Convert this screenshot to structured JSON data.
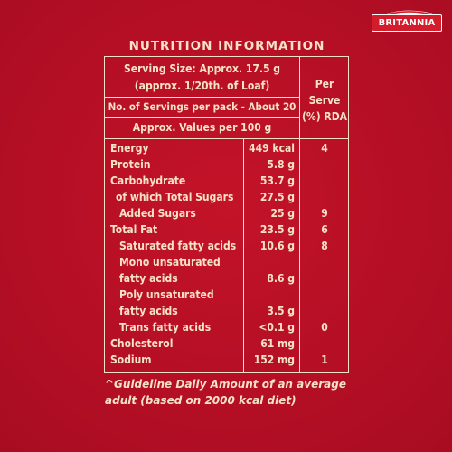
{
  "brand": {
    "name": "BRITANNIA"
  },
  "title": "NUTRITION INFORMATION",
  "serving": {
    "line1": "Serving Size: Approx. 17.5 g",
    "line2": "(approx. 1/20th. of Loaf)",
    "servings_per_pack": "No. of Servings per pack - About 20",
    "approx_values": "Approx. Values per 100 g",
    "rda_header_1": "Per",
    "rda_header_2": "Serve",
    "rda_header_3": "(%) RDA"
  },
  "rows": [
    {
      "label": "Energy",
      "value": "449 kcal",
      "rda": "4"
    },
    {
      "label": "Protein",
      "value": "5.8 g",
      "rda": ""
    },
    {
      "label": "Carbohydrate",
      "value": "53.7 g",
      "rda": ""
    },
    {
      "label": "of which Total Sugars",
      "value": "27.5 g",
      "rda": ""
    },
    {
      "label": "Added Sugars",
      "value": "25 g",
      "rda": "9"
    },
    {
      "label": "Total Fat",
      "value": "23.5 g",
      "rda": "6"
    },
    {
      "label": "Saturated fatty acids",
      "value": "10.6 g",
      "rda": "8"
    },
    {
      "label": "Mono unsaturated",
      "value": "",
      "rda": ""
    },
    {
      "label": "fatty acids",
      "value": "8.6 g",
      "rda": ""
    },
    {
      "label": "Poly unsaturated",
      "value": "",
      "rda": ""
    },
    {
      "label": "fatty acids",
      "value": "3.5 g",
      "rda": ""
    },
    {
      "label": "Trans fatty acids",
      "value": "<0.1 g",
      "rda": "0"
    },
    {
      "label": "Cholesterol",
      "value": "61 mg",
      "rda": ""
    },
    {
      "label": "Sodium",
      "value": "152 mg",
      "rda": "1"
    }
  ],
  "footnote": {
    "line1": "^Guideline Daily Amount of an average",
    "line2": "adult (based on 2000 kcal diet)"
  },
  "colors": {
    "background": "#b50f25",
    "text": "#f6e3c6",
    "brand_red": "#d31c2c"
  }
}
